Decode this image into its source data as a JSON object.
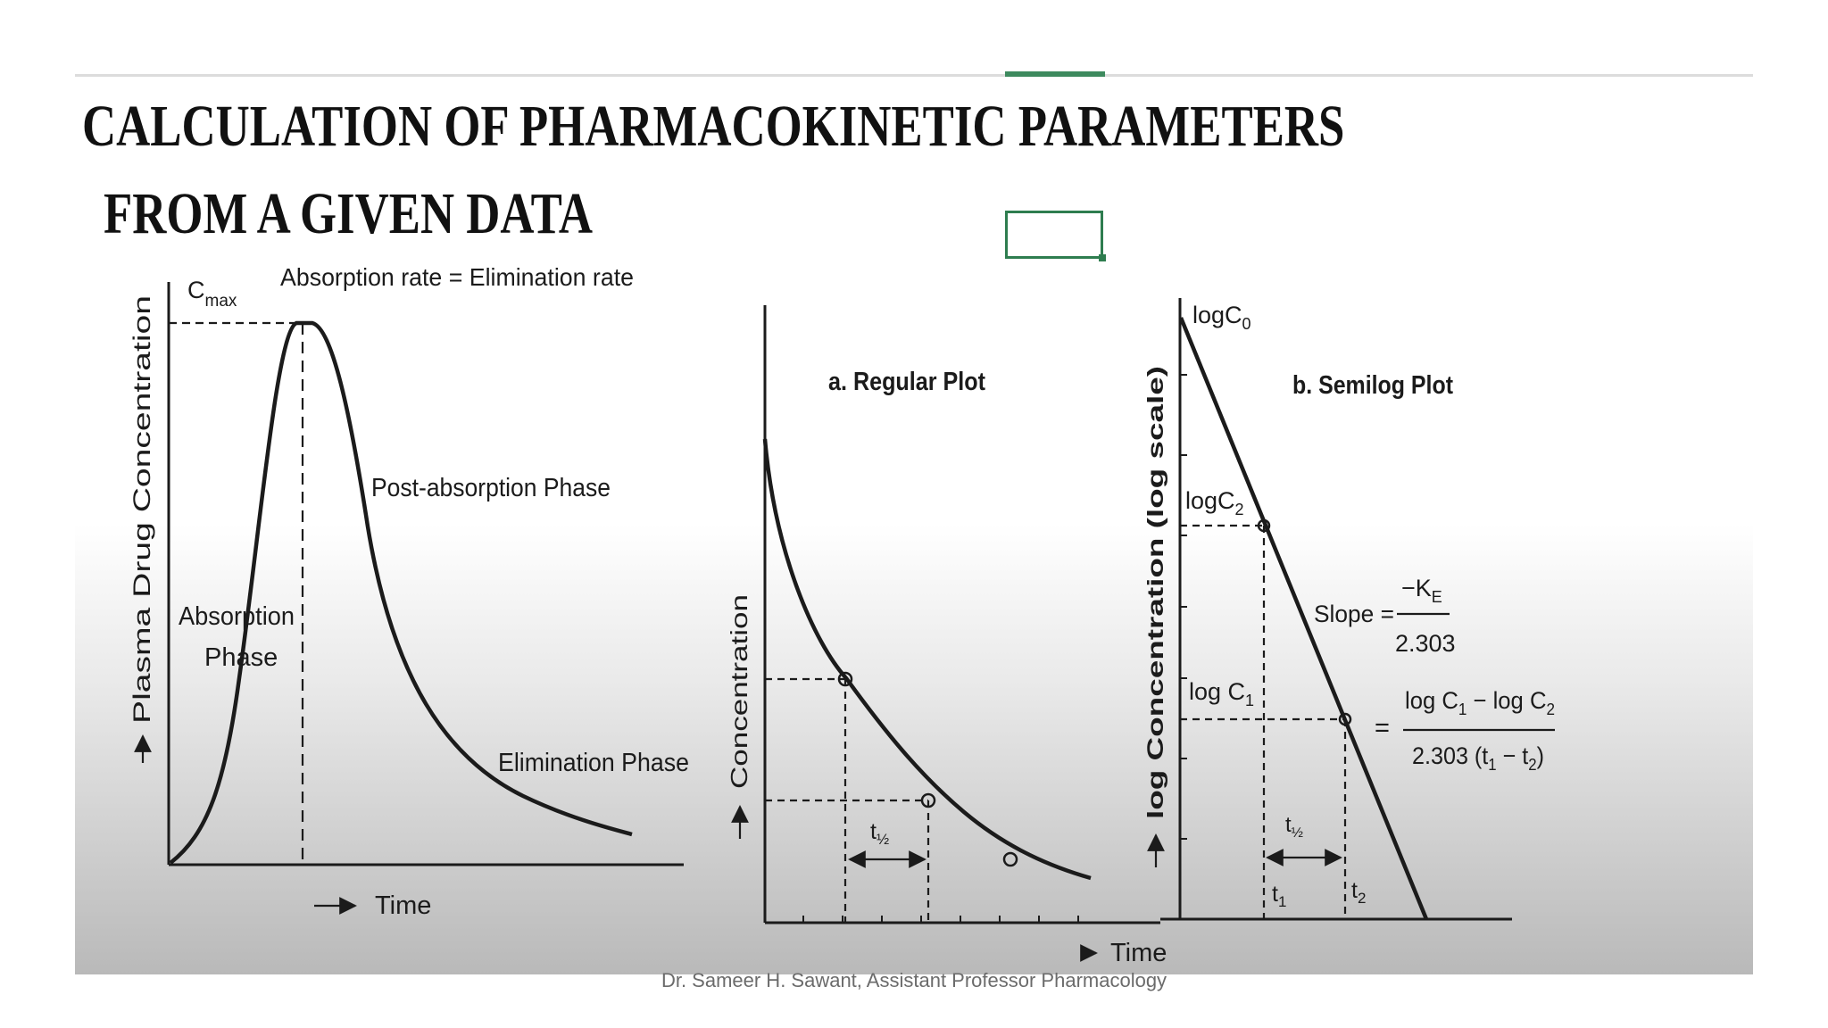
{
  "slide": {
    "title_line1": "CALCULATION OF PHARMACOKINETIC PARAMETERS",
    "title_line2": "FROM A GIVEN DATA",
    "footer": "Dr. Sameer H. Sawant, Assistant Professor Pharmacology"
  },
  "figure1": {
    "ylabel": "Plasma Drug Concentration",
    "xlabel": "Time",
    "cmax": "C",
    "cmax_sub": "max",
    "peak_label": "Absorption rate = Elimination rate",
    "absorption_line1": "Absorption",
    "absorption_line2": "Phase",
    "post_absorption": "Post-absorption Phase",
    "elimination": "Elimination Phase"
  },
  "figure2": {
    "title": "a. Regular Plot",
    "ylabel": "Concentration",
    "half_life": "t",
    "half_life_sub": "½"
  },
  "figure3": {
    "title": "b. Semilog Plot",
    "ylabel": "log Concentration (log scale)",
    "xlabel": "Time",
    "logc0": "logC",
    "logc0_sub": "0",
    "logc2": "logC",
    "logc2_sub": "2",
    "logc1": "log C",
    "logc1_sub": "1",
    "slope_label": "Slope =",
    "slope_num": "−K",
    "slope_num_sub": "E",
    "slope_den": "2.303",
    "equals": "=",
    "eq_num_a": "log C",
    "eq_num_a_sub": "1",
    "eq_num_b": " − log C",
    "eq_num_b_sub": "2",
    "eq_den_a": "2.303 (t",
    "eq_den_a_sub": "1",
    "eq_den_b": " − t",
    "eq_den_b_sub": "2",
    "eq_den_c": ")",
    "half_life": "t",
    "half_life_sub": "½",
    "t1": "t",
    "t1_sub": "1",
    "t2": "t",
    "t2_sub": "2"
  },
  "colors": {
    "accent_green": "#2e7d4f",
    "ink": "#1b1b1b"
  }
}
